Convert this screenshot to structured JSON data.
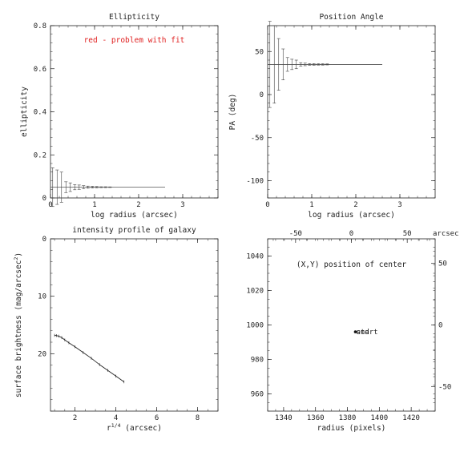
{
  "chart_data": [
    {
      "id": "ellipticity",
      "type": "scatter",
      "title": "Ellipticity",
      "xlabel": "log radius (arcsec)",
      "ylabel": "ellipticity",
      "annotation": "red - problem with fit",
      "annotation_color": "#e02020",
      "xlim": [
        0,
        3.8
      ],
      "ylim": [
        0,
        0.8
      ],
      "xticks": [
        0,
        1,
        2,
        3
      ],
      "yticks": [
        0,
        0.2,
        0.4,
        0.6,
        0.8
      ],
      "ytick_labels": [
        "0",
        "0.2",
        "0.4",
        "0.6",
        "0.8"
      ],
      "hline": {
        "y": 0.05,
        "x_from": 0,
        "x_to": 2.6
      },
      "points": [
        {
          "x": 0.05,
          "y": 0.05,
          "err": 0.09
        },
        {
          "x": 0.15,
          "y": 0.05,
          "err": 0.08
        },
        {
          "x": 0.25,
          "y": 0.05,
          "err": 0.07
        },
        {
          "x": 0.35,
          "y": 0.05,
          "err": 0.025
        },
        {
          "x": 0.45,
          "y": 0.05,
          "err": 0.02
        },
        {
          "x": 0.55,
          "y": 0.05,
          "err": 0.012
        },
        {
          "x": 0.65,
          "y": 0.05,
          "err": 0.01
        },
        {
          "x": 0.75,
          "y": 0.05,
          "err": 0.007
        },
        {
          "x": 0.85,
          "y": 0.05,
          "err": 0.005
        },
        {
          "x": 0.95,
          "y": 0.05,
          "err": 0.004
        },
        {
          "x": 1.05,
          "y": 0.05,
          "err": 0.003
        },
        {
          "x": 1.15,
          "y": 0.05,
          "err": 0.002
        },
        {
          "x": 1.25,
          "y": 0.05,
          "err": 0.002
        },
        {
          "x": 1.35,
          "y": 0.05,
          "err": 0.0015
        }
      ]
    },
    {
      "id": "position-angle",
      "type": "scatter",
      "title": "Position Angle",
      "xlabel": "log radius (arcsec)",
      "ylabel": "PA (deg)",
      "xlim": [
        0,
        3.8
      ],
      "ylim": [
        -120,
        80
      ],
      "xticks": [
        0,
        1,
        2,
        3
      ],
      "yticks": [
        -100,
        -50,
        0,
        50
      ],
      "hline": {
        "y": 35,
        "x_from": 0,
        "x_to": 2.6
      },
      "points": [
        {
          "x": 0.05,
          "y": 35,
          "err": 50
        },
        {
          "x": 0.15,
          "y": 35,
          "err": 45
        },
        {
          "x": 0.25,
          "y": 35,
          "err": 30
        },
        {
          "x": 0.35,
          "y": 35,
          "err": 18
        },
        {
          "x": 0.45,
          "y": 35,
          "err": 8
        },
        {
          "x": 0.55,
          "y": 35,
          "err": 6
        },
        {
          "x": 0.65,
          "y": 35,
          "err": 5
        },
        {
          "x": 0.75,
          "y": 35,
          "err": 2
        },
        {
          "x": 0.85,
          "y": 35,
          "err": 1.5
        },
        {
          "x": 0.95,
          "y": 35,
          "err": 1
        },
        {
          "x": 1.05,
          "y": 35,
          "err": 1
        },
        {
          "x": 1.15,
          "y": 35,
          "err": 0.8
        },
        {
          "x": 1.25,
          "y": 35,
          "err": 0.8
        },
        {
          "x": 1.35,
          "y": 35,
          "err": 0.6
        }
      ]
    },
    {
      "id": "intensity-profile",
      "type": "line",
      "title": "intensity profile of galaxy",
      "xlabel": "r",
      "xlabel_sup": "1/4",
      "xlabel_rest": " (arcsec)",
      "ylabel": "surface brightness (mag/arcsec",
      "ylabel_sup": "2",
      "ylabel_rest": ")",
      "xlim": [
        0.8,
        9
      ],
      "ylim": [
        0,
        30
      ],
      "y_inverted": true,
      "xticks": [
        2,
        4,
        6,
        8
      ],
      "yticks": [
        0,
        10,
        20
      ],
      "points": [
        {
          "x": 1.0,
          "y": 16.8
        },
        {
          "x": 1.1,
          "y": 16.85
        },
        {
          "x": 1.2,
          "y": 16.95
        },
        {
          "x": 1.35,
          "y": 17.2
        },
        {
          "x": 1.5,
          "y": 17.6
        },
        {
          "x": 1.7,
          "y": 18.1
        },
        {
          "x": 2.0,
          "y": 18.8
        },
        {
          "x": 2.4,
          "y": 19.8
        },
        {
          "x": 2.8,
          "y": 20.8
        },
        {
          "x": 3.2,
          "y": 21.9
        },
        {
          "x": 3.6,
          "y": 22.9
        },
        {
          "x": 4.0,
          "y": 23.9
        },
        {
          "x": 4.4,
          "y": 24.9
        }
      ]
    },
    {
      "id": "center-position",
      "type": "scatter",
      "title": "(X,Y) position of center",
      "xlabel": "radius (pixels)",
      "top_axis_label": "arcsec",
      "xlim": [
        1330,
        1435
      ],
      "ylim": [
        950,
        1050
      ],
      "xticks": [
        1340,
        1360,
        1380,
        1400,
        1420
      ],
      "yticks": [
        960,
        980,
        1000,
        1020,
        1040
      ],
      "top_xlim": [
        -75,
        75
      ],
      "top_xticks": [
        -50,
        0,
        50
      ],
      "right_ylim": [
        -70,
        70
      ],
      "right_yticks": [
        -50,
        0,
        50
      ],
      "points": [
        {
          "x": 1385,
          "y": 996
        }
      ],
      "point_labels": [
        "start",
        "end"
      ]
    }
  ]
}
